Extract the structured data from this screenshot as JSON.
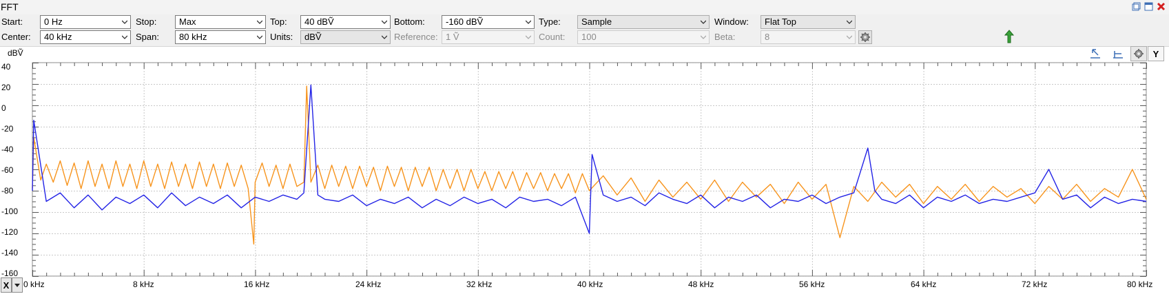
{
  "window": {
    "title": "FFT"
  },
  "controls": {
    "start": {
      "label": "Start:",
      "value": "0 Hz"
    },
    "stop": {
      "label": "Stop:",
      "value": "Max"
    },
    "top": {
      "label": "Top:",
      "value": "40 dBṼ"
    },
    "bottom": {
      "label": "Bottom:",
      "value": "-160 dBṼ"
    },
    "type": {
      "label": "Type:",
      "value": "Sample"
    },
    "window_fn": {
      "label": "Window:",
      "value": "Flat Top"
    },
    "center": {
      "label": "Center:",
      "value": "40 kHz"
    },
    "span": {
      "label": "Span:",
      "value": "80 kHz"
    },
    "units": {
      "label": "Units:",
      "value": "dBṼ"
    },
    "reference": {
      "label": "Reference:",
      "value": "1 Ṽ",
      "disabled": true
    },
    "count": {
      "label": "Count:",
      "value": "100",
      "disabled": true
    },
    "beta": {
      "label": "Beta:",
      "value": "8",
      "disabled": true
    }
  },
  "plot": {
    "y_unit_label": "dBṼ",
    "y_axis_button": "Y",
    "x_axis_button": "X",
    "background": "#ffffff",
    "grid_color": "#c8c8c8",
    "series_colors": [
      "#f7941d",
      "#2323e6"
    ]
  },
  "chart_data": {
    "type": "line",
    "title": "",
    "xlabel": "",
    "ylabel": "dBṼ",
    "xlim": [
      0,
      80
    ],
    "ylim": [
      -160,
      40
    ],
    "x_tick_labels": [
      "0 kHz",
      "8 kHz",
      "16 kHz",
      "24 kHz",
      "32 kHz",
      "40 kHz",
      "48 kHz",
      "56 kHz",
      "64 kHz",
      "72 kHz",
      "80 kHz"
    ],
    "x_ticks_khz": [
      0,
      8,
      16,
      24,
      32,
      40,
      48,
      56,
      64,
      72,
      80
    ],
    "y_tick_labels": [
      "40",
      "20",
      "0",
      "-20",
      "-40",
      "-60",
      "-80",
      "-100",
      "-120",
      "-140",
      "-160"
    ],
    "y_ticks": [
      40,
      20,
      0,
      -20,
      -40,
      -60,
      -80,
      -100,
      -120,
      -140,
      -160
    ],
    "grid": true,
    "series": [
      {
        "color": "#f7941d",
        "x_khz": [
          0,
          0.1,
          0.6,
          1.0,
          1.5,
          2.0,
          2.5,
          3.0,
          3.5,
          4.0,
          4.5,
          5.0,
          5.5,
          6.0,
          6.5,
          7.0,
          7.5,
          8.0,
          8.5,
          9.0,
          9.5,
          10.0,
          10.5,
          11.0,
          11.5,
          12.0,
          12.5,
          13.0,
          13.5,
          14.0,
          14.5,
          15.0,
          15.5,
          15.9,
          16.0,
          16.5,
          17.0,
          17.5,
          18.0,
          18.5,
          19.0,
          19.5,
          19.7,
          20.0,
          20.5,
          21.0,
          21.5,
          22.0,
          22.5,
          23.0,
          23.5,
          24.0,
          24.5,
          25.0,
          25.5,
          26.0,
          26.5,
          27.0,
          27.5,
          28.0,
          28.5,
          29.0,
          29.5,
          30.0,
          30.5,
          31.0,
          31.5,
          32.0,
          32.5,
          33.0,
          33.5,
          34.0,
          34.5,
          35.0,
          35.5,
          36.0,
          36.5,
          37.0,
          37.5,
          38.0,
          38.5,
          39.0,
          39.5,
          40.0,
          41.0,
          42.0,
          43.0,
          44.0,
          45.0,
          46.0,
          47.0,
          48.0,
          49.0,
          50.0,
          51.0,
          52.0,
          53.0,
          54.0,
          55.0,
          56.0,
          57.0,
          58.0,
          59.0,
          60.0,
          61.0,
          62.0,
          63.0,
          64.0,
          65.0,
          66.0,
          67.0,
          68.0,
          69.0,
          70.0,
          71.0,
          72.0,
          73.0,
          74.0,
          75.0,
          76.0,
          77.0,
          78.0,
          79.0,
          80.0
        ],
        "values": [
          -78,
          -30,
          -70,
          -55,
          -72,
          -52,
          -75,
          -54,
          -78,
          -52,
          -76,
          -55,
          -78,
          -52,
          -76,
          -55,
          -78,
          -52,
          -76,
          -55,
          -78,
          -53,
          -76,
          -55,
          -78,
          -53,
          -76,
          -55,
          -78,
          -54,
          -76,
          -56,
          -78,
          -130,
          -72,
          -54,
          -76,
          -56,
          -78,
          -55,
          -76,
          -72,
          18,
          -72,
          -56,
          -78,
          -56,
          -76,
          -57,
          -78,
          -57,
          -76,
          -58,
          -80,
          -57,
          -76,
          -58,
          -80,
          -58,
          -76,
          -58,
          -80,
          -60,
          -78,
          -60,
          -80,
          -60,
          -78,
          -62,
          -80,
          -62,
          -78,
          -62,
          -80,
          -63,
          -78,
          -63,
          -80,
          -64,
          -78,
          -64,
          -82,
          -64,
          -80,
          -66,
          -84,
          -68,
          -90,
          -70,
          -86,
          -72,
          -88,
          -70,
          -90,
          -72,
          -86,
          -74,
          -92,
          -72,
          -88,
          -74,
          -124,
          -76,
          -90,
          -72,
          -86,
          -74,
          -92,
          -76,
          -88,
          -74,
          -90,
          -76,
          -86,
          -78,
          -92,
          -76,
          -88,
          -74,
          -90,
          -78,
          -86,
          -60,
          -88
        ]
      },
      {
        "color": "#2323e6",
        "x_khz": [
          0,
          0.1,
          1.0,
          2.0,
          3.0,
          4.0,
          5.0,
          6.0,
          7.0,
          8.0,
          9.0,
          10.0,
          11.0,
          12.0,
          13.0,
          14.0,
          15.0,
          16.0,
          17.0,
          18.0,
          19.0,
          19.5,
          20.0,
          20.5,
          21.0,
          22.0,
          23.0,
          24.0,
          25.0,
          26.0,
          27.0,
          28.0,
          29.0,
          30.0,
          31.0,
          32.0,
          33.0,
          34.0,
          35.0,
          36.0,
          37.0,
          38.0,
          39.0,
          40.0,
          40.2,
          41.0,
          42.0,
          43.0,
          44.0,
          45.0,
          46.0,
          47.0,
          48.0,
          49.0,
          50.0,
          51.0,
          52.0,
          53.0,
          54.0,
          55.0,
          56.0,
          57.0,
          58.0,
          59.0,
          60.0,
          60.5,
          61.0,
          62.0,
          63.0,
          64.0,
          65.0,
          66.0,
          67.0,
          68.0,
          69.0,
          70.0,
          71.0,
          72.0,
          73.0,
          74.0,
          75.0,
          76.0,
          77.0,
          78.0,
          79.0,
          80.0
        ],
        "values": [
          -80,
          -14,
          -90,
          -82,
          -96,
          -84,
          -98,
          -86,
          -92,
          -84,
          -96,
          -82,
          -94,
          -86,
          -92,
          -84,
          -96,
          -86,
          -90,
          -84,
          -88,
          -82,
          19,
          -84,
          -88,
          -90,
          -84,
          -94,
          -88,
          -92,
          -86,
          -96,
          -88,
          -94,
          -86,
          -92,
          -88,
          -96,
          -86,
          -90,
          -88,
          -94,
          -86,
          -120,
          -46,
          -84,
          -90,
          -86,
          -94,
          -82,
          -88,
          -92,
          -84,
          -96,
          -86,
          -90,
          -84,
          -96,
          -88,
          -90,
          -84,
          -92,
          -86,
          -82,
          -40,
          -80,
          -88,
          -92,
          -84,
          -96,
          -86,
          -90,
          -84,
          -92,
          -88,
          -90,
          -86,
          -82,
          -60,
          -88,
          -84,
          -96,
          -86,
          -92,
          -88,
          -90
        ]
      }
    ]
  }
}
